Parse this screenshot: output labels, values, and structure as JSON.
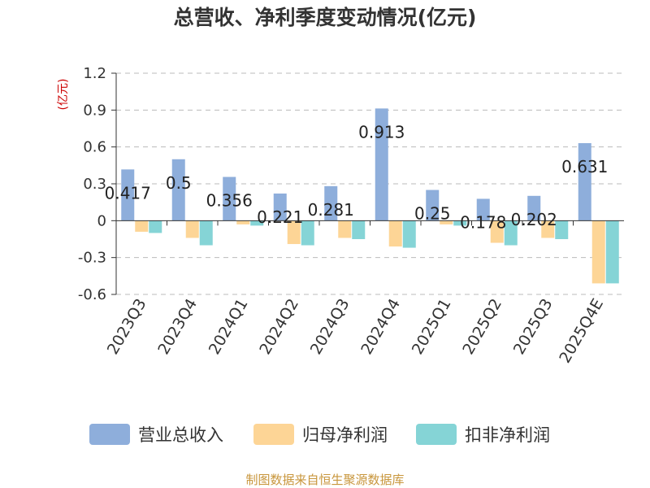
{
  "chart_data": {
    "type": "bar",
    "title": "总营收、净利季度变动情况(亿元)",
    "unit": "(亿元)",
    "categories": [
      "2023Q3",
      "2023Q4",
      "2024Q1",
      "2024Q2",
      "2024Q3",
      "2024Q4",
      "2025Q1",
      "2025Q2",
      "2025Q3",
      "2025Q4E"
    ],
    "series": [
      {
        "name": "营业总收入",
        "color": "#8eaedb",
        "values": [
          0.417,
          0.5,
          0.356,
          0.221,
          0.281,
          0.913,
          0.25,
          0.178,
          0.202,
          0.631
        ]
      },
      {
        "name": "归母净利润",
        "color": "#fdd596",
        "values": [
          -0.09,
          -0.14,
          -0.03,
          -0.19,
          -0.14,
          -0.21,
          -0.03,
          -0.18,
          -0.14,
          -0.51
        ]
      },
      {
        "name": "扣非净利润",
        "color": "#85d4d6",
        "values": [
          -0.1,
          -0.2,
          -0.04,
          -0.2,
          -0.15,
          -0.22,
          -0.04,
          -0.2,
          -0.15,
          -0.51
        ]
      }
    ],
    "data_labels": [
      "0.417",
      "0.5",
      "0.356",
      "0.221",
      "0.281",
      "0.913",
      "0.25",
      "0.178",
      "0.202",
      "0.631"
    ],
    "ylim": [
      -0.6,
      1.2
    ],
    "yticks": [
      "1.2",
      "0.9",
      "0.6",
      "0.3",
      "0",
      "-0.3",
      "-0.6"
    ],
    "ytick_values": [
      1.2,
      0.9,
      0.6,
      0.3,
      0,
      -0.3,
      -0.6
    ],
    "grid": true,
    "legend": "bottom"
  },
  "source": "制图数据来自恒生聚源数据库"
}
